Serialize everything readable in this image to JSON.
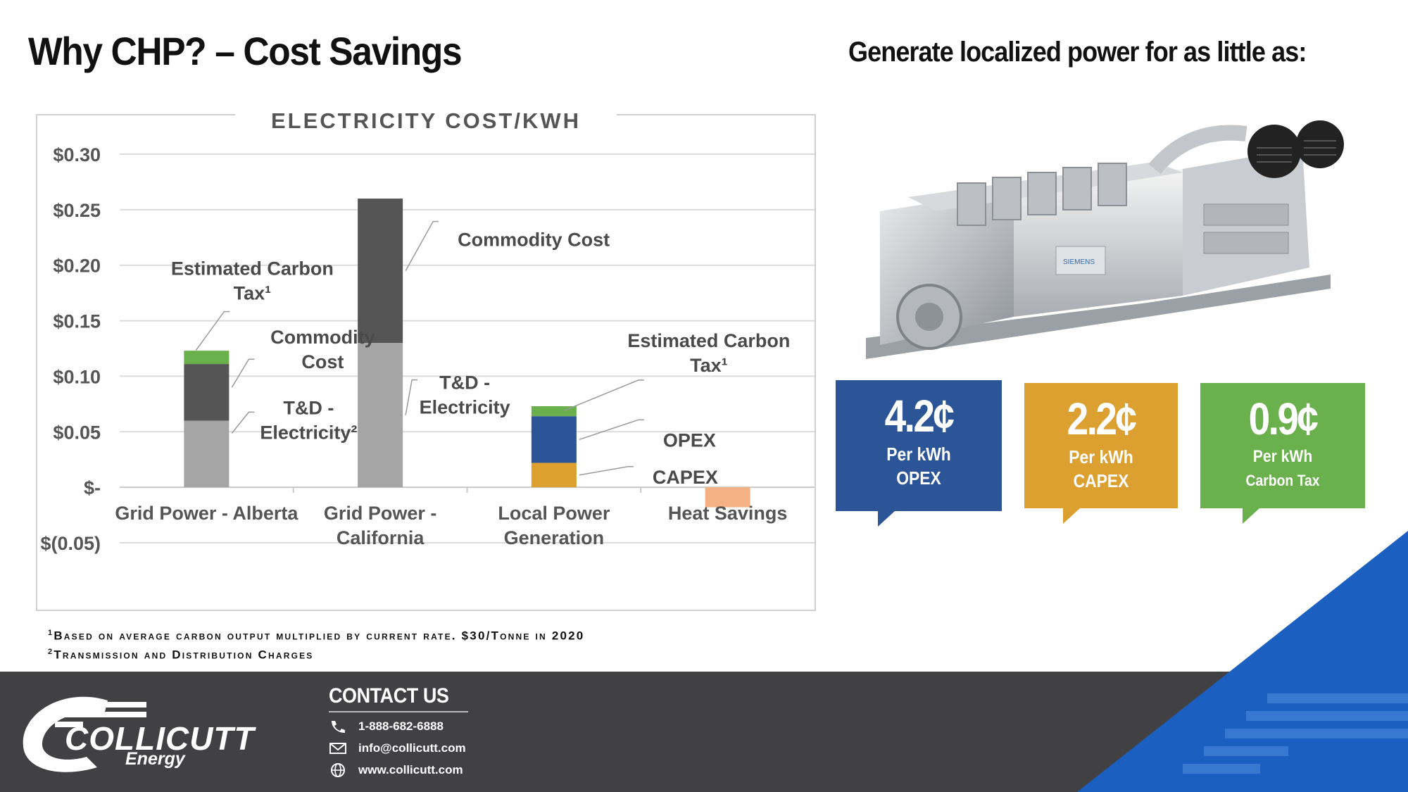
{
  "page": {
    "title": "Why CHP? – Cost Savings",
    "subtitle": "Generate localized power for as little as:"
  },
  "chart_data": {
    "type": "bar",
    "stacked": true,
    "title": "ELECTRICITY COST/KWH",
    "categories": [
      [
        "Grid Power - Alberta"
      ],
      [
        "Grid Power -",
        "California"
      ],
      [
        "Local Power",
        "Generation"
      ],
      [
        "Heat Savings"
      ]
    ],
    "y_tick_labels": [
      "$(0.05)",
      "$-",
      "$0.05",
      "$0.10",
      "$0.15",
      "$0.20",
      "$0.25",
      "$0.30"
    ],
    "y_ticks": [
      -0.05,
      0,
      0.05,
      0.1,
      0.15,
      0.2,
      0.25,
      0.3
    ],
    "ylim": [
      -0.05,
      0.3
    ],
    "grid": true,
    "segments": [
      {
        "category": 0,
        "name": "T&D - Electricity",
        "value": 0.06,
        "color": "#a5a5a5"
      },
      {
        "category": 0,
        "name": "Commodity Cost",
        "value": 0.051,
        "color": "#555555"
      },
      {
        "category": 0,
        "name": "Estimated Carbon Tax",
        "value": 0.012,
        "color": "#6ab04c"
      },
      {
        "category": 1,
        "name": "T&D - Electricity",
        "value": 0.13,
        "color": "#a5a5a5"
      },
      {
        "category": 1,
        "name": "Commodity Cost",
        "value": 0.13,
        "color": "#555555"
      },
      {
        "category": 2,
        "name": "CAPEX",
        "value": 0.022,
        "color": "#dba030"
      },
      {
        "category": 2,
        "name": "OPEX",
        "value": 0.042,
        "color": "#2b5597"
      },
      {
        "category": 2,
        "name": "Estimated Carbon Tax",
        "value": 0.009,
        "color": "#6ab04c"
      },
      {
        "category": 3,
        "name": "Heat Savings",
        "value": -0.018,
        "color": "#f4b183"
      }
    ],
    "annotations": [
      {
        "lines": [
          "Estimated Carbon",
          "Tax¹"
        ],
        "category": 0,
        "value": 0.117
      },
      {
        "lines": [
          "Commodity",
          "Cost"
        ],
        "category": 0,
        "value": 0.09
      },
      {
        "lines": [
          "T&D -",
          "Electricity²"
        ],
        "category": 0,
        "value": 0.055
      },
      {
        "lines": [
          "Commodity Cost"
        ],
        "category": 1,
        "value": 0.195
      },
      {
        "lines": [
          "T&D -",
          "Electricity"
        ],
        "category": 1,
        "value": 0.065
      },
      {
        "lines": [
          "Estimated Carbon",
          "Tax¹"
        ],
        "category": 2,
        "value": 0.068
      },
      {
        "lines": [
          "OPEX"
        ],
        "category": 2,
        "value": 0.043
      },
      {
        "lines": [
          "CAPEX"
        ],
        "category": 2,
        "value": 0.011
      }
    ]
  },
  "price_boxes": [
    {
      "value": "4.2¢",
      "line1": "Per kWh",
      "line2": "OPEX",
      "color": "#2b5597"
    },
    {
      "value": "2.2¢",
      "line1": "Per kWh",
      "line2": "CAPEX",
      "color": "#dba030"
    },
    {
      "value": "0.9¢",
      "line1": "Per kWh",
      "line2": "Carbon Tax",
      "color": "#6ab04c"
    }
  ],
  "footnotes": {
    "note1_mark": "1",
    "note1": "Based on average carbon output multiplied by current rate. $30/Tonne in 2020",
    "note2_mark": "2",
    "note2": "Transmission and Distribution Charges"
  },
  "contact": {
    "title": "CONTACT US",
    "phone": "1-888-682-6888",
    "email": "info@collicutt.com",
    "website": "www.collicutt.com"
  },
  "logo": {
    "name": "COLLICUTT",
    "sub": "Energy"
  },
  "engine_label": "SIEMENS"
}
